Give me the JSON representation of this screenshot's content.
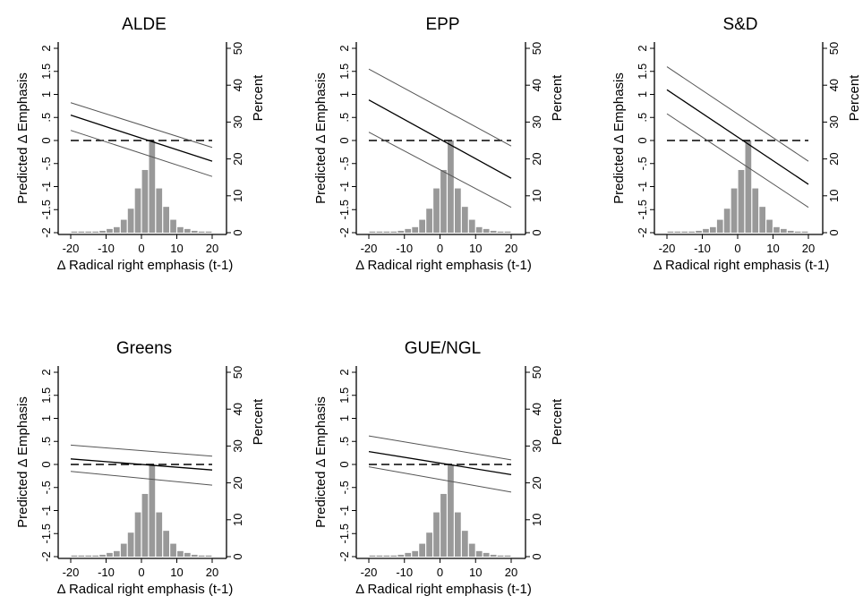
{
  "chart_data": [
    {
      "type": "line",
      "title": "ALDE",
      "xlabel": "Δ Radical right emphasis (t-1)",
      "ylabel": "Predicted Δ Emphasis",
      "y2label": "Percent",
      "xlim": [
        -20,
        20
      ],
      "ylim": [
        -2,
        2
      ],
      "y2lim": [
        0,
        50
      ],
      "xticks": [
        "-20",
        "-10",
        "0",
        "10",
        "20"
      ],
      "yticks": [
        "-2",
        "-1.5",
        "-1",
        "-.5",
        "0",
        ".5",
        "1",
        "1.5",
        "2"
      ],
      "y2ticks": [
        "0",
        "10",
        "20",
        "30",
        "40",
        "50"
      ],
      "reference_line": {
        "y": 0,
        "style": "dashed"
      },
      "series": [
        {
          "x": [
            -20,
            20
          ],
          "y": [
            0.55,
            -0.45
          ]
        },
        {
          "x": [
            -20,
            20
          ],
          "y": [
            0.82,
            -0.15
          ]
        },
        {
          "x": [
            -20,
            20
          ],
          "y": [
            0.22,
            -0.78
          ]
        }
      ],
      "histogram": {
        "bins": [
          -20,
          -18,
          -16,
          -14,
          -12,
          -10,
          -8,
          -6,
          -4,
          -2,
          0,
          2,
          4,
          6,
          8,
          10,
          12,
          14,
          16,
          18
        ],
        "percent": [
          0.3,
          0.3,
          0.3,
          0.3,
          0.5,
          1.0,
          1.5,
          3.5,
          6.5,
          12,
          17,
          25,
          12,
          7,
          3.5,
          1.5,
          1.0,
          0.5,
          0.3,
          0.3
        ]
      }
    },
    {
      "type": "line",
      "title": "EPP",
      "xlabel": "Δ Radical right emphasis (t-1)",
      "ylabel": "Predicted Δ Emphasis",
      "y2label": "Percent",
      "xlim": [
        -20,
        20
      ],
      "ylim": [
        -2,
        2
      ],
      "y2lim": [
        0,
        50
      ],
      "xticks": [
        "-20",
        "-10",
        "0",
        "10",
        "20"
      ],
      "yticks": [
        "-2",
        "-1.5",
        "-1",
        "-.5",
        "0",
        ".5",
        "1",
        "1.5",
        "2"
      ],
      "y2ticks": [
        "0",
        "10",
        "20",
        "30",
        "40",
        "50"
      ],
      "reference_line": {
        "y": 0,
        "style": "dashed"
      },
      "series": [
        {
          "x": [
            -20,
            20
          ],
          "y": [
            0.88,
            -0.82
          ]
        },
        {
          "x": [
            -20,
            20
          ],
          "y": [
            1.55,
            -0.12
          ]
        },
        {
          "x": [
            -20,
            20
          ],
          "y": [
            0.18,
            -1.45
          ]
        }
      ],
      "histogram": {
        "bins": [
          -20,
          -18,
          -16,
          -14,
          -12,
          -10,
          -8,
          -6,
          -4,
          -2,
          0,
          2,
          4,
          6,
          8,
          10,
          12,
          14,
          16,
          18
        ],
        "percent": [
          0.3,
          0.3,
          0.3,
          0.3,
          0.5,
          1.0,
          1.5,
          3.5,
          6.5,
          12,
          17,
          25,
          12,
          7,
          3.5,
          1.5,
          1.0,
          0.5,
          0.3,
          0.3
        ]
      }
    },
    {
      "type": "line",
      "title": "S&D",
      "xlabel": "Δ Radical right emphasis (t-1)",
      "ylabel": "Predicted Δ Emphasis",
      "y2label": "Percent",
      "xlim": [
        -20,
        20
      ],
      "ylim": [
        -2,
        2
      ],
      "y2lim": [
        0,
        50
      ],
      "xticks": [
        "-20",
        "-10",
        "0",
        "10",
        "20"
      ],
      "yticks": [
        "-2",
        "-1.5",
        "-1",
        "-.5",
        "0",
        ".5",
        "1",
        "1.5",
        "2"
      ],
      "y2ticks": [
        "0",
        "10",
        "20",
        "30",
        "40",
        "50"
      ],
      "reference_line": {
        "y": 0,
        "style": "dashed"
      },
      "series": [
        {
          "x": [
            -20,
            20
          ],
          "y": [
            1.1,
            -0.95
          ]
        },
        {
          "x": [
            -20,
            20
          ],
          "y": [
            1.6,
            -0.45
          ]
        },
        {
          "x": [
            -20,
            20
          ],
          "y": [
            0.58,
            -1.45
          ]
        }
      ],
      "histogram": {
        "bins": [
          -20,
          -18,
          -16,
          -14,
          -12,
          -10,
          -8,
          -6,
          -4,
          -2,
          0,
          2,
          4,
          6,
          8,
          10,
          12,
          14,
          16,
          18
        ],
        "percent": [
          0.3,
          0.3,
          0.3,
          0.3,
          0.5,
          1.0,
          1.5,
          3.5,
          6.5,
          12,
          17,
          25,
          12,
          7,
          3.5,
          1.5,
          1.0,
          0.5,
          0.3,
          0.3
        ]
      }
    },
    {
      "type": "line",
      "title": "Greens",
      "xlabel": "Δ Radical right emphasis (t-1)",
      "ylabel": "Predicted Δ Emphasis",
      "y2label": "Percent",
      "xlim": [
        -20,
        20
      ],
      "ylim": [
        -2,
        2
      ],
      "y2lim": [
        0,
        50
      ],
      "xticks": [
        "-20",
        "-10",
        "0",
        "10",
        "20"
      ],
      "yticks": [
        "-2",
        "-1.5",
        "-1",
        "-.5",
        "0",
        ".5",
        "1",
        "1.5",
        "2"
      ],
      "y2ticks": [
        "0",
        "10",
        "20",
        "30",
        "40",
        "50"
      ],
      "reference_line": {
        "y": 0,
        "style": "dashed"
      },
      "series": [
        {
          "x": [
            -20,
            20
          ],
          "y": [
            0.12,
            -0.12
          ]
        },
        {
          "x": [
            -20,
            20
          ],
          "y": [
            0.42,
            0.18
          ]
        },
        {
          "x": [
            -20,
            20
          ],
          "y": [
            -0.15,
            -0.45
          ]
        }
      ],
      "histogram": {
        "bins": [
          -20,
          -18,
          -16,
          -14,
          -12,
          -10,
          -8,
          -6,
          -4,
          -2,
          0,
          2,
          4,
          6,
          8,
          10,
          12,
          14,
          16,
          18
        ],
        "percent": [
          0.3,
          0.3,
          0.3,
          0.3,
          0.5,
          1.0,
          1.5,
          3.5,
          6.5,
          12,
          17,
          25,
          12,
          7,
          3.5,
          1.5,
          1.0,
          0.5,
          0.3,
          0.3
        ]
      }
    },
    {
      "type": "line",
      "title": "GUE/NGL",
      "xlabel": "Δ Radical right emphasis (t-1)",
      "ylabel": "Predicted Δ Emphasis",
      "y2label": "Percent",
      "xlim": [
        -20,
        20
      ],
      "ylim": [
        -2,
        2
      ],
      "y2lim": [
        0,
        50
      ],
      "xticks": [
        "-20",
        "-10",
        "0",
        "10",
        "20"
      ],
      "yticks": [
        "-2",
        "-1.5",
        "-1",
        "-.5",
        "0",
        ".5",
        "1",
        "1.5",
        "2"
      ],
      "y2ticks": [
        "0",
        "10",
        "20",
        "30",
        "40",
        "50"
      ],
      "reference_line": {
        "y": 0,
        "style": "dashed"
      },
      "series": [
        {
          "x": [
            -20,
            20
          ],
          "y": [
            0.28,
            -0.22
          ]
        },
        {
          "x": [
            -20,
            20
          ],
          "y": [
            0.62,
            0.1
          ]
        },
        {
          "x": [
            -20,
            20
          ],
          "y": [
            -0.05,
            -0.6
          ]
        }
      ],
      "histogram": {
        "bins": [
          -20,
          -18,
          -16,
          -14,
          -12,
          -10,
          -8,
          -6,
          -4,
          -2,
          0,
          2,
          4,
          6,
          8,
          10,
          12,
          14,
          16,
          18
        ],
        "percent": [
          0.3,
          0.3,
          0.3,
          0.3,
          0.5,
          1.0,
          1.5,
          3.5,
          6.5,
          12,
          17,
          25,
          12,
          7,
          3.5,
          1.5,
          1.0,
          0.5,
          0.3,
          0.3
        ]
      }
    }
  ],
  "colors": {
    "point_estimate": "#000000",
    "confidence_band": "#555555",
    "histogram_bar": "#999999",
    "axis": "#000000",
    "reference_line": "#000000"
  }
}
